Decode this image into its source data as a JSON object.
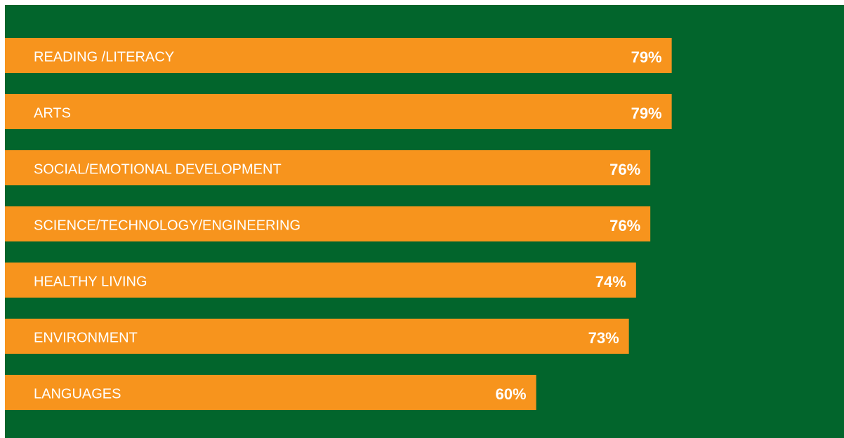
{
  "chart_data": {
    "type": "bar",
    "orientation": "horizontal",
    "categories": [
      "READING /LITERACY",
      "ARTS",
      "SOCIAL/EMOTIONAL DEVELOPMENT",
      "SCIENCE/TECHNOLOGY/ENGINEERING",
      "HEALTHY LIVING",
      "ENVIRONMENT",
      "LANGUAGES"
    ],
    "values": [
      79,
      79,
      76,
      76,
      74,
      73,
      60
    ],
    "value_labels": [
      "79%",
      "79%",
      "76%",
      "76%",
      "74%",
      "73%",
      "60%"
    ],
    "color": "#f7941d",
    "background": "#02652c"
  }
}
